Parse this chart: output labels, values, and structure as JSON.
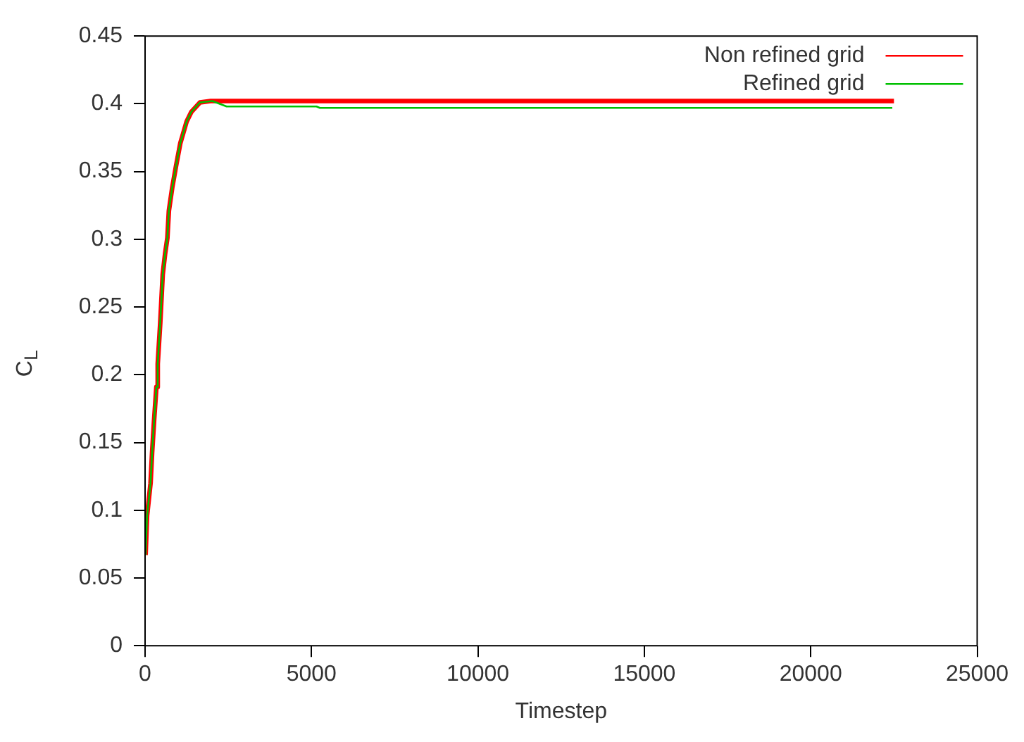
{
  "chart_data": {
    "type": "line",
    "xlabel": "Timestep",
    "ylabel": "C$_{L}$",
    "xlim": [
      0,
      25000
    ],
    "xticks": [
      0,
      5000,
      10000,
      15000,
      20000,
      25000
    ],
    "ylim": [
      0,
      0.45
    ],
    "yticks": [
      0,
      0.05,
      0.1,
      0.15,
      0.2,
      0.25,
      0.3,
      0.35,
      0.4,
      0.45
    ],
    "grid": false,
    "legend": "top right",
    "marker": "none",
    "line_style": "solid",
    "series": [
      {
        "name": "Non refined grid",
        "color": "#ff0000",
        "x": [
          15,
          60,
          165,
          210,
          270,
          340,
          380,
          455,
          530,
          600,
          670,
          715,
          815,
          930,
          1060,
          1250,
          1390,
          1650,
          1970,
          22500
        ],
        "values": [
          0.067,
          0.096,
          0.12,
          0.142,
          0.166,
          0.191,
          0.208,
          0.238,
          0.274,
          0.289,
          0.301,
          0.321,
          0.338,
          0.354,
          0.371,
          0.387,
          0.394,
          0.401,
          0.402,
          0.402
        ]
      },
      {
        "name": "Refined grid",
        "color": "#00c000",
        "x": [
          15,
          60,
          165,
          210,
          270,
          340,
          380,
          455,
          530,
          600,
          670,
          715,
          815,
          930,
          1060,
          1250,
          1390,
          1650,
          2020,
          2450,
          5150,
          5250,
          22450
        ],
        "values": [
          0.067,
          0.096,
          0.12,
          0.142,
          0.166,
          0.191,
          0.208,
          0.238,
          0.274,
          0.289,
          0.301,
          0.321,
          0.338,
          0.354,
          0.371,
          0.387,
          0.394,
          0.401,
          0.402,
          0.398,
          0.398,
          0.397,
          0.397
        ]
      }
    ]
  }
}
